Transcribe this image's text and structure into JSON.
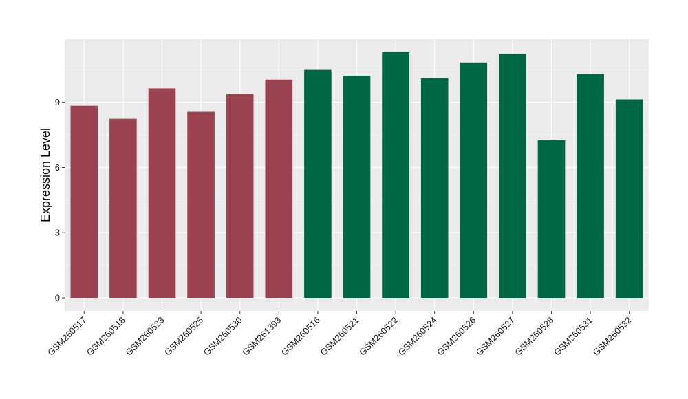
{
  "chart_data": {
    "type": "bar",
    "title": "",
    "xlabel": "",
    "ylabel": "Expression Level",
    "ylim": [
      -0.6,
      11.9
    ],
    "yticks": [
      0,
      3,
      6,
      9
    ],
    "grid": true,
    "legend": "none",
    "categories": [
      "GSM260517",
      "GSM260518",
      "GSM260523",
      "GSM260525",
      "GSM260530",
      "GSM261393",
      "GSM260516",
      "GSM260521",
      "GSM260522",
      "GSM260524",
      "GSM260526",
      "GSM260527",
      "GSM260528",
      "GSM260531",
      "GSM260532"
    ],
    "values": [
      8.84,
      8.24,
      9.64,
      8.56,
      9.38,
      10.04,
      10.49,
      10.22,
      11.3,
      10.1,
      10.83,
      11.22,
      7.25,
      10.3,
      9.13
    ],
    "group": [
      0,
      0,
      0,
      0,
      0,
      0,
      1,
      1,
      1,
      1,
      1,
      1,
      1,
      1,
      1
    ],
    "colors": {
      "group_a": "#9a4250",
      "group_b": "#006644",
      "panel": "#ebebeb",
      "grid_major": "#ffffff",
      "grid_minor": "#f5f5f5"
    }
  }
}
